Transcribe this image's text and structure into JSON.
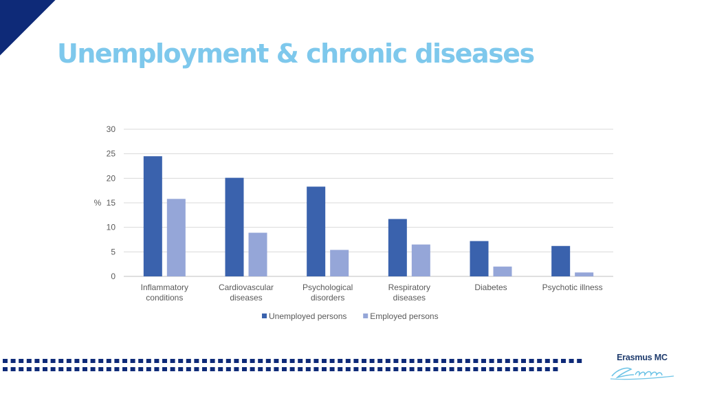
{
  "slide": {
    "title": "Unemployment & chronic diseases",
    "logo_text": "Erasmus MC",
    "accent_color": "#0e2a78",
    "title_color": "#7ec8ec"
  },
  "chart_data": {
    "type": "bar",
    "title": "",
    "xlabel": "",
    "ylabel": "%",
    "ylim": [
      0,
      30
    ],
    "yticks": [
      0,
      5,
      10,
      15,
      20,
      25,
      30
    ],
    "grid": true,
    "legend_position": "bottom",
    "categories": [
      [
        "Inflammatory",
        "conditions"
      ],
      [
        "Cardiovascular",
        "diseases"
      ],
      [
        "Psychological",
        "disorders"
      ],
      [
        "Respiratory",
        "diseases"
      ],
      [
        "Diabetes"
      ],
      [
        "Psychotic illness"
      ]
    ],
    "series": [
      {
        "name": "Unemployed persons",
        "color": "#3a62ad",
        "values": [
          24.5,
          20.1,
          18.3,
          11.7,
          7.2,
          6.2
        ]
      },
      {
        "name": "Employed persons",
        "color": "#95a6d8",
        "values": [
          15.8,
          8.9,
          5.4,
          6.5,
          2.0,
          0.8
        ]
      }
    ]
  }
}
